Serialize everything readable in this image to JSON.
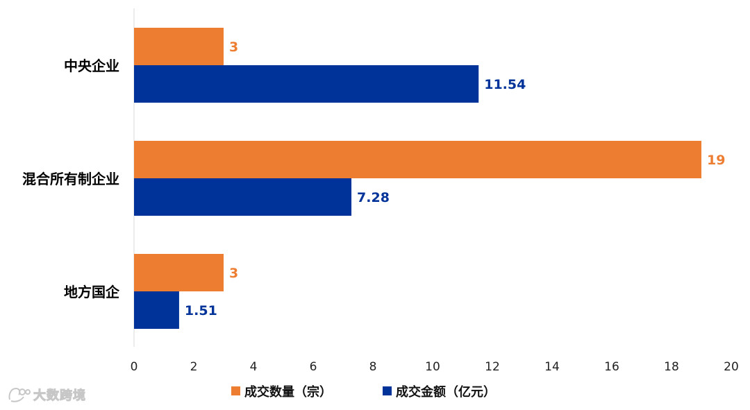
{
  "chart_data": {
    "type": "bar",
    "orientation": "horizontal",
    "categories": [
      "中央企业",
      "混合所有制企业",
      "地方国企"
    ],
    "series": [
      {
        "name": "成交数量（宗）",
        "color": "#ED7D31",
        "values": [
          3,
          19,
          3
        ],
        "labels": [
          "3",
          "19",
          "3"
        ]
      },
      {
        "name": "成交金额（亿元）",
        "color": "#003399",
        "values": [
          11.54,
          7.28,
          1.51
        ],
        "labels": [
          "11.54",
          "7.28",
          "1.51"
        ]
      }
    ],
    "xlim": [
      0,
      20
    ],
    "xticks": [
      "0",
      "2",
      "4",
      "6",
      "8",
      "10",
      "12",
      "14",
      "16",
      "18",
      "20"
    ],
    "grid": false,
    "legend_position": "bottom"
  },
  "watermark": {
    "text": "大数跨境"
  }
}
